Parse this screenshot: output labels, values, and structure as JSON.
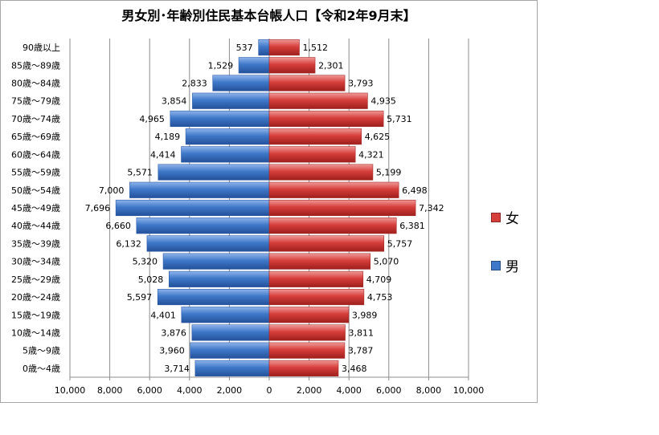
{
  "chart_data": {
    "type": "bar",
    "orientation": "horizontal-pyramid",
    "title": "男女別･年齢別住民基本台帳人口【令和2年9月末】",
    "categories": [
      "90歳以上",
      "85歳～89歳",
      "80歳～84歳",
      "75歳～79歳",
      "70歳～74歳",
      "65歳～69歳",
      "60歳～64歳",
      "55歳～59歳",
      "50歳～54歳",
      "45歳～49歳",
      "40歳～44歳",
      "35歳～39歳",
      "30歳～34歳",
      "25歳～29歳",
      "20歳～24歳",
      "15歳～19歳",
      "10歳～14歳",
      "5歳～9歳",
      "0歳～4歳"
    ],
    "series": [
      {
        "name": "男",
        "color": "#3f78c9",
        "values": [
          537,
          1529,
          2833,
          3854,
          4965,
          4189,
          4414,
          5571,
          7000,
          7696,
          6660,
          6132,
          5320,
          5028,
          5597,
          4401,
          3876,
          3960,
          3714
        ],
        "labels": [
          "537",
          "1,529",
          "2,833",
          "3,854",
          "4,965",
          "4,189",
          "4,414",
          "5,571",
          "7,000",
          "7,696",
          "6,660",
          "6,132",
          "5,320",
          "5,028",
          "5,597",
          "4,401",
          "3,876",
          "3,960",
          "3,714"
        ]
      },
      {
        "name": "女",
        "color": "#d63e3b",
        "values": [
          1512,
          2301,
          3793,
          4935,
          5731,
          4625,
          4321,
          5199,
          6498,
          7342,
          6381,
          5757,
          5070,
          4709,
          4753,
          3989,
          3811,
          3787,
          3468
        ],
        "labels": [
          "1,512",
          "2,301",
          "3,793",
          "4,935",
          "5,731",
          "4,625",
          "4,321",
          "5,199",
          "6,498",
          "7,342",
          "6,381",
          "5,757",
          "5,070",
          "4,709",
          "4,753",
          "3,989",
          "3,811",
          "3,787",
          "3,468"
        ]
      }
    ],
    "xlim": [
      -10000,
      10000
    ],
    "xticks": [
      "10,000",
      "8,000",
      "6,000",
      "4,000",
      "2,000",
      "0",
      "2,000",
      "4,000",
      "6,000",
      "8,000",
      "10,000"
    ],
    "grid": "vertical",
    "legend": {
      "placement": "right",
      "items": [
        "女",
        "男"
      ]
    }
  }
}
